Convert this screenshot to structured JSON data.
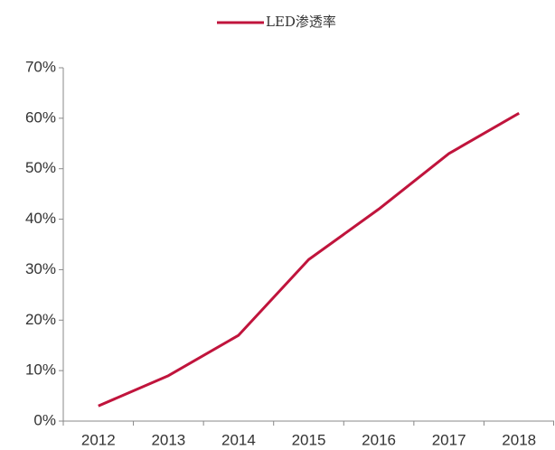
{
  "chart_data": {
    "type": "line",
    "categories": [
      "2012",
      "2013",
      "2014",
      "2015",
      "2016",
      "2017",
      "2018"
    ],
    "series": [
      {
        "name": "LED渗透率",
        "color": "#c0143c",
        "values": [
          3,
          9,
          17,
          32,
          42,
          53,
          61
        ]
      }
    ],
    "ylim": [
      0,
      70
    ],
    "yticks": [
      {
        "value": 0,
        "label": "0%"
      },
      {
        "value": 10,
        "label": "10%"
      },
      {
        "value": 20,
        "label": "20%"
      },
      {
        "value": 30,
        "label": "30%"
      },
      {
        "value": 40,
        "label": "40%"
      },
      {
        "value": 50,
        "label": "50%"
      },
      {
        "value": 60,
        "label": "60%"
      },
      {
        "value": 70,
        "label": "70%"
      }
    ],
    "grid": false,
    "legend": "top"
  }
}
